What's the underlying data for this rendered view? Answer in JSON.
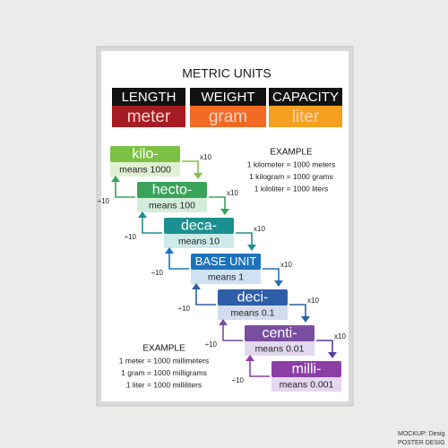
{
  "title": "METRIC UNITS",
  "base_units": [
    {
      "name": "LENGTH",
      "unit": "meter"
    },
    {
      "name": "WEIGHT",
      "unit": "gram"
    },
    {
      "name": "CAPACITY",
      "unit": "liter"
    }
  ],
  "steps": [
    {
      "prefix": "kilo-",
      "meaning": "means 1000"
    },
    {
      "prefix": "hecto-",
      "meaning": "means 100"
    },
    {
      "prefix": "deca-",
      "meaning": "means 10"
    },
    {
      "prefix": "BASE UNIT",
      "meaning": "means 1"
    },
    {
      "prefix": "deci-",
      "meaning": "means 0.1"
    },
    {
      "prefix": "centi-",
      "meaning": "means 0.01"
    },
    {
      "prefix": "milli-",
      "meaning": "means 0.001"
    }
  ],
  "multiply_label": "x10",
  "divide_label": "÷10",
  "example_top": {
    "heading": "EXAMPLE",
    "lines": [
      "1 kilometer = 1000 meters",
      "1 kilogram = 1000 grams",
      "1 kiloliter = 1000 liters"
    ]
  },
  "example_bottom": {
    "heading": "EXAMPLE",
    "lines": [
      "1 meter = 1000 millimeters",
      "1 gram = 1000 milligrams",
      "1 liter = 1000 milliliters"
    ]
  },
  "watermark": [
    "MOCKUP: Desig",
    "POSTER DESIG"
  ]
}
